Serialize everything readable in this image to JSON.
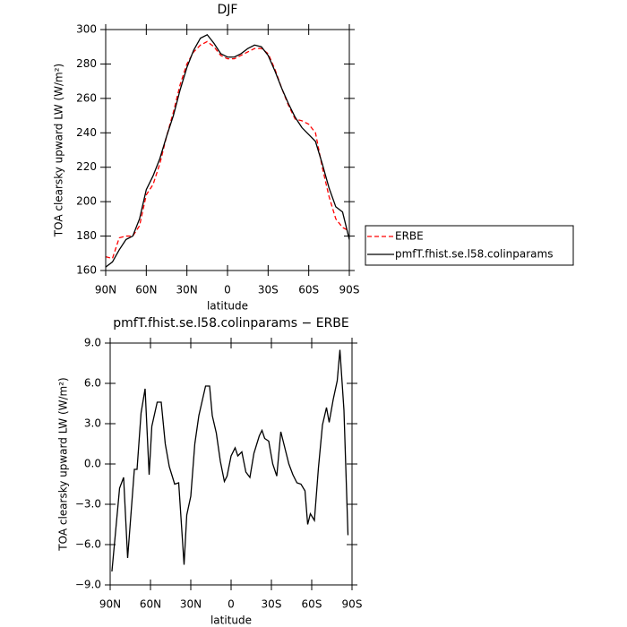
{
  "chart_data": [
    {
      "type": "line",
      "title": "DJF",
      "ylabel": "TOA clearsky upward LW (W/m²)",
      "xlabel": "latitude",
      "xlim": [
        90,
        -90
      ],
      "ylim": [
        160,
        300
      ],
      "xticks": [
        {
          "value": 90,
          "label": "90N"
        },
        {
          "value": 60,
          "label": "60N"
        },
        {
          "value": 30,
          "label": "30N"
        },
        0,
        {
          "value": -30,
          "label": "30S"
        },
        {
          "value": -60,
          "label": "60S"
        },
        {
          "value": -90,
          "label": "90S"
        }
      ],
      "yticks": [
        160,
        180,
        200,
        220,
        240,
        260,
        280,
        300
      ],
      "legend": "right",
      "x": [
        90,
        85,
        80,
        75,
        70,
        65,
        60,
        55,
        50,
        45,
        40,
        35,
        30,
        25,
        20,
        15,
        10,
        5,
        0,
        -5,
        -10,
        -15,
        -20,
        -25,
        -30,
        -35,
        -40,
        -45,
        -50,
        -55,
        -60,
        -65,
        -70,
        -75,
        -80,
        -85,
        -90
      ],
      "series": [
        {
          "name": "ERBE",
          "color": "#ff0000",
          "dash": true,
          "values": [
            168,
            167,
            179,
            180,
            180,
            186,
            204,
            210,
            222,
            238,
            252,
            268,
            280,
            287,
            291,
            293,
            290,
            285,
            283,
            283,
            285,
            287,
            289,
            289,
            286,
            277,
            266,
            256,
            248,
            247,
            245,
            240,
            220,
            203,
            190,
            185,
            183
          ]
        },
        {
          "name": "pmfT.fhist.se.l58.colinparams",
          "color": "#000000",
          "dash": false,
          "values": [
            162,
            165,
            172,
            178,
            180,
            190,
            207,
            215,
            225,
            238,
            250,
            265,
            278,
            288,
            295,
            297,
            292,
            286,
            284,
            284,
            286,
            289,
            291,
            290,
            285,
            276,
            266,
            257,
            249,
            243,
            239,
            235,
            222,
            208,
            197,
            194,
            178
          ]
        }
      ]
    },
    {
      "type": "line",
      "title": "pmfT.fhist.se.l58.colinparams − ERBE",
      "ylabel": "TOA clearsky upward LW (W/m²)",
      "xlabel": "latitude",
      "xlim": [
        90,
        -90
      ],
      "ylim": [
        -9,
        9
      ],
      "xticks": [
        {
          "value": 90,
          "label": "90N"
        },
        {
          "value": 60,
          "label": "60N"
        },
        {
          "value": 30,
          "label": "30N"
        },
        0,
        {
          "value": -30,
          "label": "30S"
        },
        {
          "value": -60,
          "label": "60S"
        },
        {
          "value": -90,
          "label": "90S"
        }
      ],
      "yticks": [
        {
          "value": 9,
          "label": "9.0"
        },
        {
          "value": 6,
          "label": "6.0"
        },
        {
          "value": 3,
          "label": "3.0"
        },
        {
          "value": 0,
          "label": "0.0"
        },
        {
          "value": -3,
          "label": "−3.0"
        },
        {
          "value": -6,
          "label": "−6.0"
        },
        {
          "value": -9,
          "label": "−9.0"
        }
      ],
      "x": [
        88.7,
        83,
        80,
        77,
        72,
        70,
        67,
        64,
        61,
        59,
        55,
        52,
        49,
        46,
        42,
        39,
        35,
        33,
        30,
        27,
        24,
        19,
        16,
        14,
        11,
        8,
        5,
        3,
        0,
        -3,
        -5,
        -8,
        -11,
        -14,
        -17,
        -21,
        -23,
        -25,
        -28,
        -31,
        -34,
        -37,
        -40,
        -43,
        -46,
        -49,
        -52,
        -55,
        -57,
        -59,
        -62,
        -65,
        -68,
        -71,
        -73,
        -76,
        -79,
        -81,
        -84,
        -87
      ],
      "series": [
        {
          "name": "pmfT.fhist.se.l58.colinparams − ERBE",
          "color": "#000000",
          "dash": false,
          "values": [
            -8.0,
            -1.8,
            -1.0,
            -7.0,
            -0.4,
            -0.4,
            3.8,
            5.6,
            -0.8,
            2.8,
            4.6,
            4.6,
            1.5,
            -0.2,
            -1.5,
            -1.4,
            -7.5,
            -3.8,
            -2.4,
            1.5,
            3.6,
            5.8,
            5.8,
            3.6,
            2.3,
            0.2,
            -1.3,
            -0.9,
            0.6,
            1.2,
            0.6,
            0.9,
            -0.6,
            -1.0,
            0.8,
            2.1,
            2.5,
            1.9,
            1.7,
            0.0,
            -0.9,
            2.4,
            1.2,
            0.0,
            -0.8,
            -1.4,
            -1.5,
            -2.0,
            -4.5,
            -3.7,
            -4.2,
            -0.3,
            2.9,
            4.2,
            3.1,
            4.8,
            6.2,
            8.5,
            4.0,
            -5.3
          ]
        }
      ]
    }
  ]
}
